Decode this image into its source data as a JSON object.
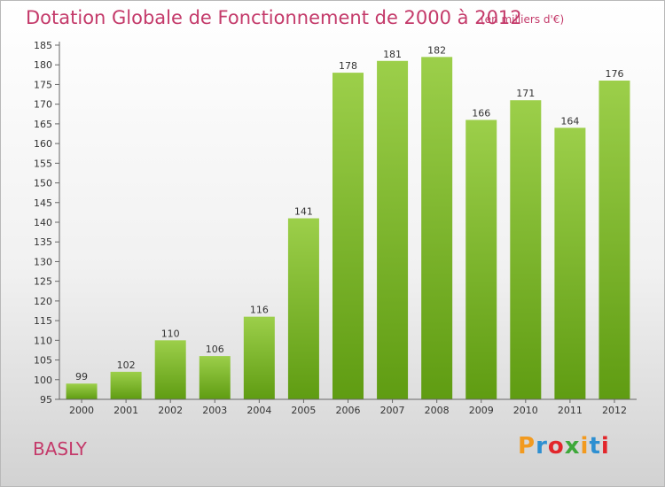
{
  "header": {
    "title": "Dotation Globale de Fonctionnement de 2000 à 2012",
    "subtitle": "(en milliers d'€)"
  },
  "footer": {
    "commune": "BASLY",
    "brand": "Proxiti"
  },
  "colors": {
    "title": "#c43a6a",
    "bar_top": "#9ccf4a",
    "bar_bottom": "#5f9c12",
    "brand_letters": [
      "#f29a1f",
      "#2e8fd1",
      "#e2262b",
      "#3ea83a",
      "#f29a1f",
      "#2e8fd1",
      "#e2262b"
    ]
  },
  "chart_data": {
    "type": "bar",
    "title": "Dotation Globale de Fonctionnement de 2000 à 2012",
    "subtitle": "(en milliers d'€)",
    "xlabel": "",
    "ylabel": "",
    "categories": [
      "2000",
      "2001",
      "2002",
      "2003",
      "2004",
      "2005",
      "2006",
      "2007",
      "2008",
      "2009",
      "2010",
      "2011",
      "2012"
    ],
    "values": [
      99,
      102,
      110,
      106,
      116,
      141,
      178,
      181,
      182,
      166,
      171,
      164,
      176
    ],
    "ylim": [
      95,
      185
    ],
    "ytick_step": 5,
    "grid": false,
    "legend": "none"
  }
}
